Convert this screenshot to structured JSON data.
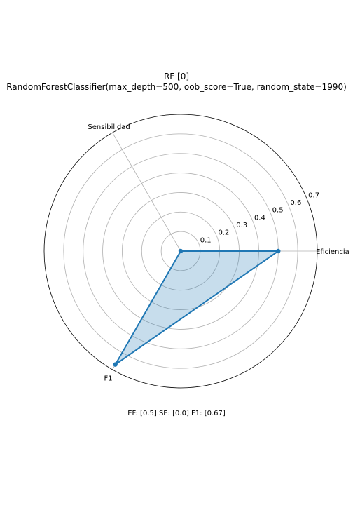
{
  "chart_data": {
    "type": "radar",
    "title": "RF [0]",
    "subtitle": "RandomForestClassifier(max_depth=500, oob_score=True, random_state=1990)",
    "axes": [
      "Eficiencia",
      "Sensibilidad",
      "F1"
    ],
    "series": [
      {
        "values": [
          0.5,
          0.0,
          0.67
        ]
      }
    ],
    "rlim": [
      0,
      0.7
    ],
    "r_ticks": [
      "0.1",
      "0.2",
      "0.3",
      "0.4",
      "0.5",
      "0.6",
      "0.7"
    ],
    "grid": true,
    "line_color": "#1f77b4",
    "fill_color": "#1f77b4",
    "annotation": "EF: [0.5] SE: [0.0] F1: [0.67]"
  }
}
